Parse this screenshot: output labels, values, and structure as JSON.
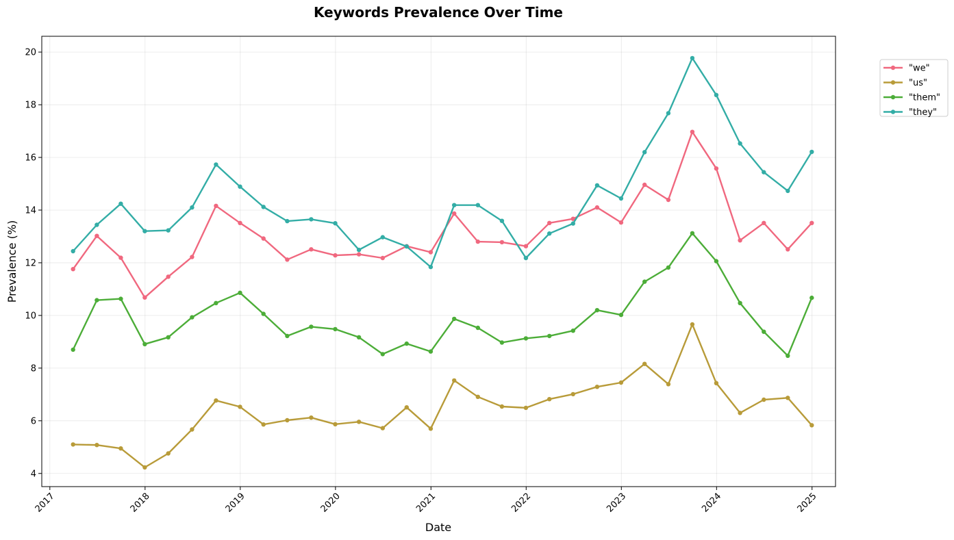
{
  "chart_data": {
    "type": "line",
    "title": "Keywords Prevalence Over Time",
    "xlabel": "Date",
    "ylabel": "Prevalence (%)",
    "x_ticks": [
      "2017",
      "2018",
      "2019",
      "2020",
      "2021",
      "2022",
      "2023",
      "2024",
      "2025"
    ],
    "y_ticks": [
      4,
      6,
      8,
      10,
      12,
      14,
      16,
      18,
      20
    ],
    "xlim": [
      "2016-12-01",
      "2025-04-01"
    ],
    "ylim": [
      3.5,
      20.6
    ],
    "grid": true,
    "legend_position": "upper-right-outside",
    "x": [
      "2017-03-31",
      "2017-06-30",
      "2017-09-30",
      "2017-12-31",
      "2018-03-31",
      "2018-06-30",
      "2018-09-30",
      "2018-12-31",
      "2019-03-31",
      "2019-06-30",
      "2019-09-30",
      "2019-12-31",
      "2020-03-31",
      "2020-06-30",
      "2020-09-30",
      "2020-12-31",
      "2021-03-31",
      "2021-06-30",
      "2021-09-30",
      "2021-12-31",
      "2022-03-31",
      "2022-06-30",
      "2022-09-30",
      "2022-12-31",
      "2023-03-31",
      "2023-06-30",
      "2023-09-30",
      "2023-12-31",
      "2024-03-31",
      "2024-06-30",
      "2024-09-30",
      "2024-12-31"
    ],
    "series": [
      {
        "name": "\"we\"",
        "color": "#f0687f",
        "values": [
          11.76,
          13.02,
          12.19,
          10.68,
          11.47,
          12.22,
          14.16,
          13.51,
          12.92,
          12.12,
          12.51,
          12.28,
          12.32,
          12.18,
          12.63,
          12.4,
          13.87,
          12.8,
          12.78,
          12.63,
          13.51,
          13.67,
          14.1,
          13.53,
          14.96,
          14.39,
          16.97,
          15.58,
          12.85,
          13.51,
          12.51,
          13.51
        ]
      },
      {
        "name": "\"us\"",
        "color": "#b89b39",
        "values": [
          5.1,
          5.08,
          4.95,
          4.23,
          4.76,
          5.67,
          6.77,
          6.53,
          5.86,
          6.02,
          6.12,
          5.87,
          5.96,
          5.72,
          6.51,
          5.7,
          7.53,
          6.91,
          6.54,
          6.49,
          6.82,
          7.01,
          7.29,
          7.45,
          8.16,
          7.39,
          9.66,
          7.43,
          6.3,
          6.8,
          6.87,
          5.83
        ]
      },
      {
        "name": "\"them\"",
        "color": "#4cad38",
        "values": [
          8.7,
          10.58,
          10.63,
          8.91,
          9.17,
          9.93,
          10.47,
          10.86,
          10.06,
          9.22,
          9.57,
          9.48,
          9.17,
          8.53,
          8.93,
          8.63,
          9.87,
          9.53,
          8.97,
          9.13,
          9.22,
          9.42,
          10.2,
          10.02,
          11.28,
          11.82,
          13.12,
          12.06,
          10.47,
          9.38,
          8.47,
          10.67
        ]
      },
      {
        "name": "\"they\"",
        "color": "#33ada6",
        "values": [
          12.44,
          13.44,
          14.24,
          13.2,
          13.23,
          14.1,
          15.73,
          14.89,
          14.12,
          13.58,
          13.65,
          13.5,
          12.49,
          12.97,
          12.62,
          11.84,
          14.19,
          14.19,
          13.59,
          12.18,
          13.11,
          13.49,
          14.94,
          14.44,
          16.2,
          17.68,
          19.77,
          18.37,
          16.53,
          15.44,
          14.73,
          16.21
        ]
      }
    ]
  }
}
